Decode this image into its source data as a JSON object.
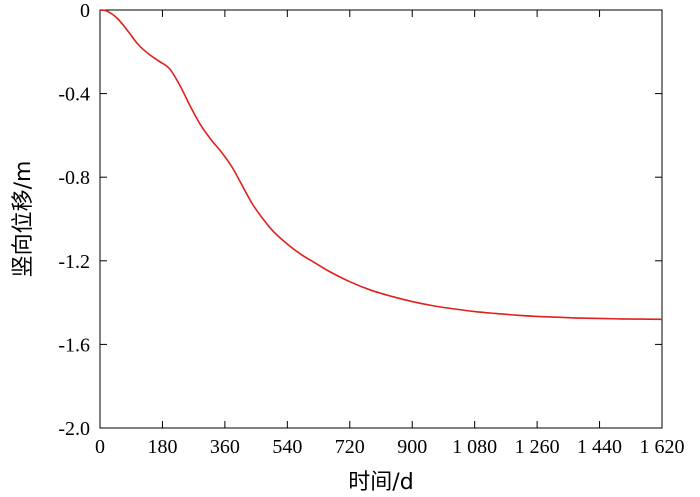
{
  "chart_data": {
    "type": "line",
    "xlabel": "时间/d",
    "ylabel": "竖向位移/m",
    "xlim": [
      0,
      1620
    ],
    "ylim": [
      -2.0,
      0
    ],
    "x_ticks": [
      {
        "value": 0,
        "label": "0"
      },
      {
        "value": 180,
        "label": "180"
      },
      {
        "value": 360,
        "label": "360"
      },
      {
        "value": 540,
        "label": "540"
      },
      {
        "value": 720,
        "label": "720"
      },
      {
        "value": 900,
        "label": "900"
      },
      {
        "value": 1080,
        "label": "1 080"
      },
      {
        "value": 1260,
        "label": "1 260"
      },
      {
        "value": 1440,
        "label": "1 440"
      },
      {
        "value": 1620,
        "label": "1 620"
      }
    ],
    "y_ticks": [
      {
        "value": 0,
        "label": "0"
      },
      {
        "value": -0.4,
        "label": "-0.4"
      },
      {
        "value": -0.8,
        "label": "-0.8"
      },
      {
        "value": -1.2,
        "label": "-1.2"
      },
      {
        "value": -1.6,
        "label": "-1.6"
      },
      {
        "value": -2.0,
        "label": "-2.0"
      }
    ],
    "grid": false,
    "series": [
      {
        "color": "#e0201b",
        "x": [
          0,
          20,
          50,
          80,
          110,
          140,
          170,
          200,
          230,
          260,
          290,
          320,
          350,
          380,
          410,
          440,
          470,
          500,
          540,
          580,
          620,
          660,
          720,
          780,
          840,
          900,
          960,
          1020,
          1080,
          1140,
          1200,
          1260,
          1320,
          1380,
          1440,
          1500,
          1560,
          1620
        ],
        "y": [
          0,
          -0.005,
          -0.04,
          -0.1,
          -0.165,
          -0.21,
          -0.245,
          -0.28,
          -0.36,
          -0.46,
          -0.55,
          -0.62,
          -0.68,
          -0.75,
          -0.84,
          -0.93,
          -1.0,
          -1.06,
          -1.12,
          -1.17,
          -1.21,
          -1.25,
          -1.3,
          -1.34,
          -1.37,
          -1.395,
          -1.415,
          -1.43,
          -1.443,
          -1.452,
          -1.46,
          -1.466,
          -1.47,
          -1.474,
          -1.476,
          -1.478,
          -1.479,
          -1.48
        ]
      }
    ]
  }
}
